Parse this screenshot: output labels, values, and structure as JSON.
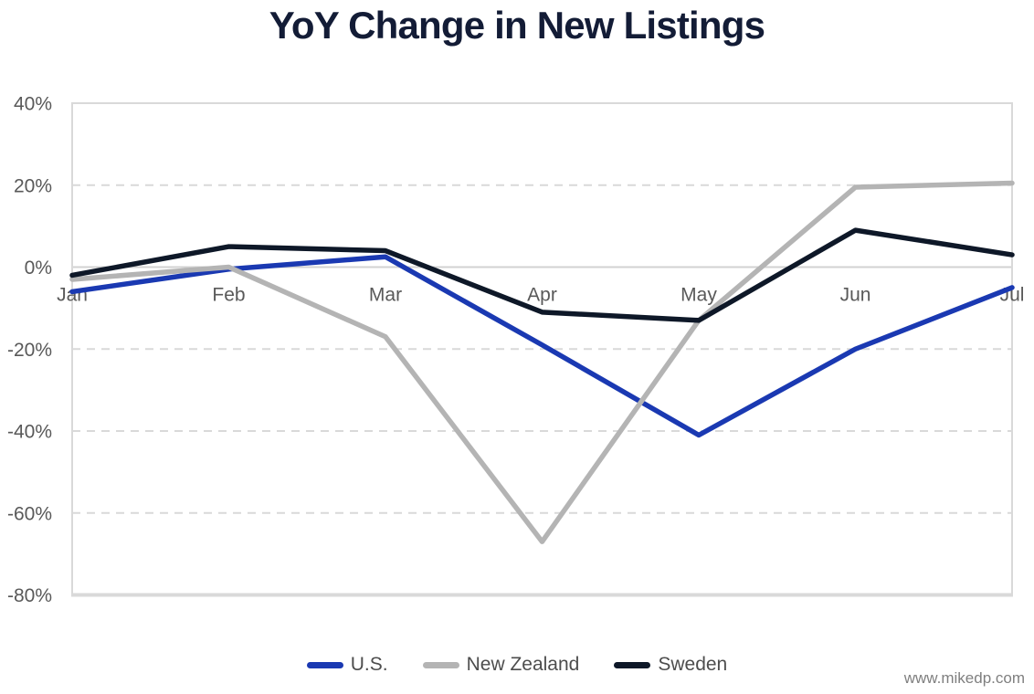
{
  "title": "YoY Change in New Listings",
  "watermark": "www.mikedp.com",
  "colors": {
    "title": "#131c36",
    "axis_label": "#595959",
    "legend_label": "#4d4d4d",
    "gridline": "#d9d9d9",
    "zero_line": "#d2d2d2",
    "frame": "#d9d9d9",
    "watermark": "#7f7f7f",
    "background": "#ffffff"
  },
  "chart_data": {
    "type": "line",
    "title": "YoY Change in New Listings",
    "categories": [
      "Jan",
      "Feb",
      "Mar",
      "Apr",
      "May",
      "Jun",
      "Jul"
    ],
    "series": [
      {
        "name": "U.S.",
        "color": "#1a39b2",
        "values": [
          -6,
          -0.5,
          2.5,
          -19,
          -41,
          -20,
          -5
        ]
      },
      {
        "name": "New Zealand",
        "color": "#b4b4b4",
        "values": [
          -3,
          0,
          -17,
          -67,
          -13,
          19.5,
          20.5
        ]
      },
      {
        "name": "Sweden",
        "color": "#0e1828",
        "values": [
          -2,
          5,
          4,
          -11,
          -13,
          9,
          3
        ]
      }
    ],
    "ylim": [
      -80,
      40
    ],
    "yticks": [
      40,
      20,
      0,
      -20,
      -40,
      -60,
      -80
    ],
    "ytick_suffix": "%",
    "xlabel": "",
    "ylabel": "",
    "grid": "horizontal-dashed, solid zero line, x labels inside plot below zero line",
    "legend_position": "bottom-center"
  }
}
